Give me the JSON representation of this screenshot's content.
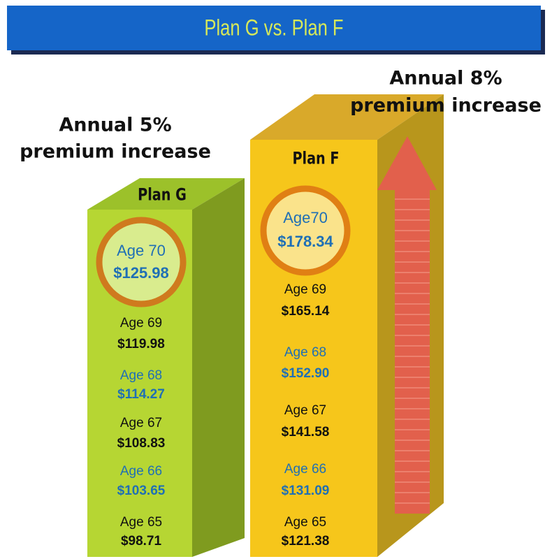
{
  "header": {
    "title": "Plan G vs. Plan F"
  },
  "captions": [
    {
      "line1": "Annual 5%",
      "line2": "premium increase"
    },
    {
      "line1": "Annual 8%",
      "line2": "premium increase"
    }
  ],
  "plans": [
    {
      "name": "Plan G",
      "entries": [
        {
          "age": "Age 70",
          "price": "$125.98"
        },
        {
          "age": "Age 69",
          "price": "$119.98"
        },
        {
          "age": "Age 68",
          "price": "$114.27"
        },
        {
          "age": "Age 67",
          "price": "$108.83"
        },
        {
          "age": "Age 66",
          "price": "$103.65"
        },
        {
          "age": "Age 65",
          "price": "$98.71"
        }
      ]
    },
    {
      "name": "Plan F",
      "entries": [
        {
          "age": "Age70",
          "price": "$178.34"
        },
        {
          "age": "Age 69",
          "price": "$165.14"
        },
        {
          "age": "Age 68",
          "price": "$152.90"
        },
        {
          "age": "Age 67",
          "price": "$141.58"
        },
        {
          "age": "Age 66",
          "price": "$131.09"
        },
        {
          "age": "Age 65",
          "price": "$121.38"
        }
      ]
    }
  ]
}
